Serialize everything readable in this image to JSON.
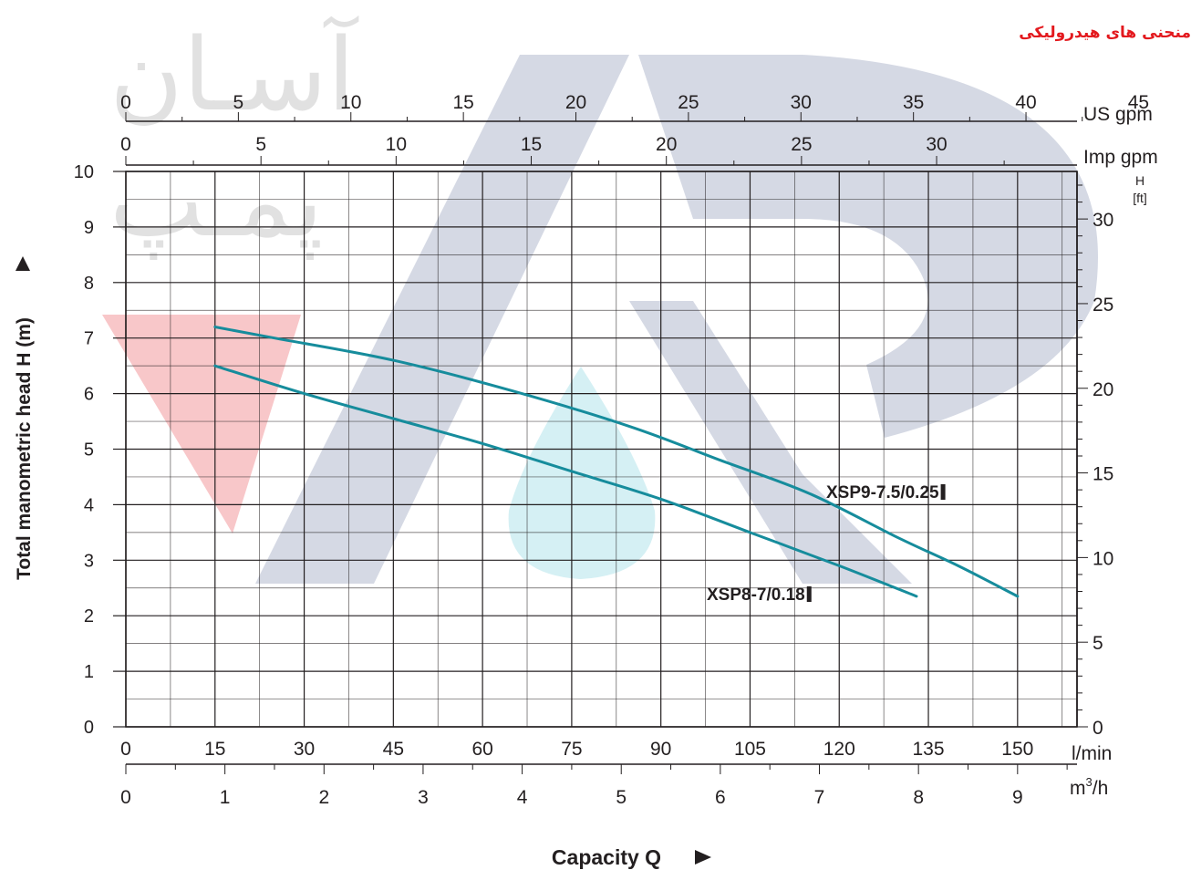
{
  "page": {
    "title": "منحنی های هیدرولیکی",
    "watermark": {
      "text_line1": "آسـان",
      "text_line2": "پمـپ",
      "colors": {
        "navy": "#2b3f7a",
        "red": "#e8474c",
        "cyan": "#2fb3c6"
      }
    }
  },
  "chart_data": {
    "type": "line",
    "title": "",
    "xlabel": "Capacity Q",
    "ylabel": "Total manometric head H (m)",
    "xlim": [
      0,
      160
    ],
    "ylim": [
      0,
      10
    ],
    "grid": true,
    "line_color": "#168c9c",
    "y_ticks": [
      0,
      1,
      2,
      3,
      4,
      5,
      6,
      7,
      8,
      9,
      10
    ],
    "axes_secondary": {
      "bottom_lmin": {
        "unit": "l/min",
        "ticks": [
          0,
          15,
          30,
          45,
          60,
          75,
          90,
          105,
          120,
          135,
          150
        ]
      },
      "bottom_m3h": {
        "unit": "m³/h",
        "unit_base": "m",
        "unit_sup": "3",
        "unit_suffix": "/h",
        "ticks": [
          0,
          1,
          2,
          3,
          4,
          5,
          6,
          7,
          8,
          9
        ]
      },
      "top_usgpm": {
        "unit": "US gpm",
        "ticks": [
          0,
          5,
          10,
          15,
          20,
          25,
          30,
          35,
          40,
          45
        ]
      },
      "top_impgpm": {
        "unit": "Imp gpm",
        "ticks": [
          0,
          5,
          10,
          15,
          20,
          25,
          30
        ]
      },
      "right_ft": {
        "unit_top": "H",
        "unit_bottom": "[ft]",
        "ticks": [
          0,
          5,
          10,
          15,
          20,
          25,
          30
        ]
      }
    },
    "series": [
      {
        "name": "XSP9-7.5/0.25",
        "x": [
          15,
          25,
          45,
          65,
          85,
          100,
          115,
          130,
          140,
          150
        ],
        "y": [
          7.2,
          7.0,
          6.6,
          6.05,
          5.4,
          4.8,
          4.2,
          3.4,
          2.9,
          2.35
        ]
      },
      {
        "name": "XSP8-7/0.18",
        "x": [
          15,
          30,
          45,
          60,
          75,
          90,
          105,
          120,
          133
        ],
        "y": [
          6.5,
          6.0,
          5.55,
          5.1,
          4.6,
          4.1,
          3.5,
          2.9,
          2.35
        ]
      }
    ]
  }
}
